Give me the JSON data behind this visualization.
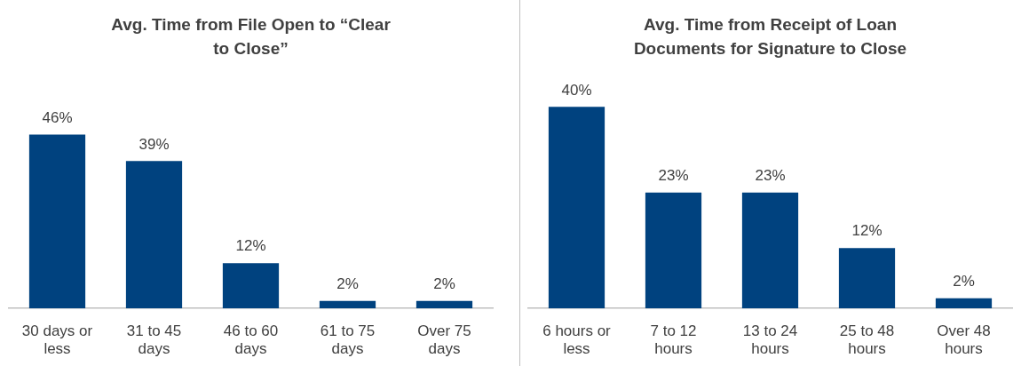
{
  "chart_data": [
    {
      "type": "bar",
      "title": "Avg. Time from File Open to “Clear to Close”",
      "categories": [
        "30 days or less",
        "31 to 45 days",
        "46 to 60 days",
        "61 to 75 days",
        "Over 75 days"
      ],
      "values": [
        46,
        39,
        12,
        2,
        2
      ],
      "value_labels": [
        "46%",
        "39%",
        "12%",
        "2%",
        "2%"
      ],
      "color": "#00427f"
    },
    {
      "type": "bar",
      "title": "Avg. Time from Receipt of Loan Documents for Signature to Close",
      "categories": [
        "6 hours or less",
        "7 to 12 hours",
        "13 to 24 hours",
        "25 to 48 hours",
        "Over 48 hours"
      ],
      "values": [
        40,
        23,
        23,
        12,
        2
      ],
      "value_labels": [
        "40%",
        "23%",
        "23%",
        "12%",
        "2%"
      ],
      "color": "#00427f"
    }
  ]
}
